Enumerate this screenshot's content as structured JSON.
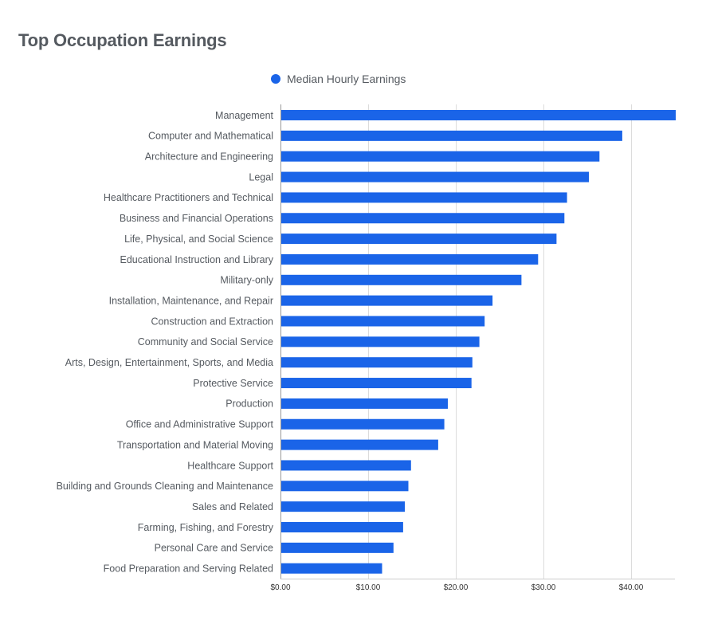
{
  "chart_data": {
    "type": "bar",
    "orientation": "horizontal",
    "title": "Top Occupation Earnings",
    "legend": {
      "position": "top",
      "entries": [
        "Median Hourly Earnings"
      ]
    },
    "series": [
      {
        "name": "Median Hourly Earnings",
        "color": "#1a64e8",
        "values": [
          45.0,
          38.9,
          36.3,
          35.1,
          32.6,
          32.3,
          31.4,
          29.3,
          27.4,
          24.1,
          23.2,
          22.6,
          21.8,
          21.7,
          19.0,
          18.6,
          17.9,
          14.8,
          14.5,
          14.1,
          13.9,
          12.8,
          11.5
        ]
      }
    ],
    "categories": [
      "Management",
      "Computer and Mathematical",
      "Architecture and Engineering",
      "Legal",
      "Healthcare Practitioners and Technical",
      "Business and Financial Operations",
      "Life, Physical, and Social Science",
      "Educational Instruction and Library",
      "Military-only",
      "Installation, Maintenance, and Repair",
      "Construction and Extraction",
      "Community and Social Service",
      "Arts, Design, Entertainment, Sports, and Media",
      "Protective Service",
      "Production",
      "Office and Administrative Support",
      "Transportation and Material Moving",
      "Healthcare Support",
      "Building and Grounds Cleaning and Maintenance",
      "Sales and Related",
      "Farming, Fishing, and Forestry",
      "Personal Care and Service",
      "Food Preparation and Serving Related"
    ],
    "xlim": [
      0,
      45
    ],
    "xticks": [
      0,
      10,
      20,
      30,
      40
    ],
    "xtick_labels": [
      "$0.00",
      "$10.00",
      "$20.00",
      "$30.00",
      "$40.00"
    ],
    "xlabel": "",
    "ylabel": "",
    "grid": true
  }
}
